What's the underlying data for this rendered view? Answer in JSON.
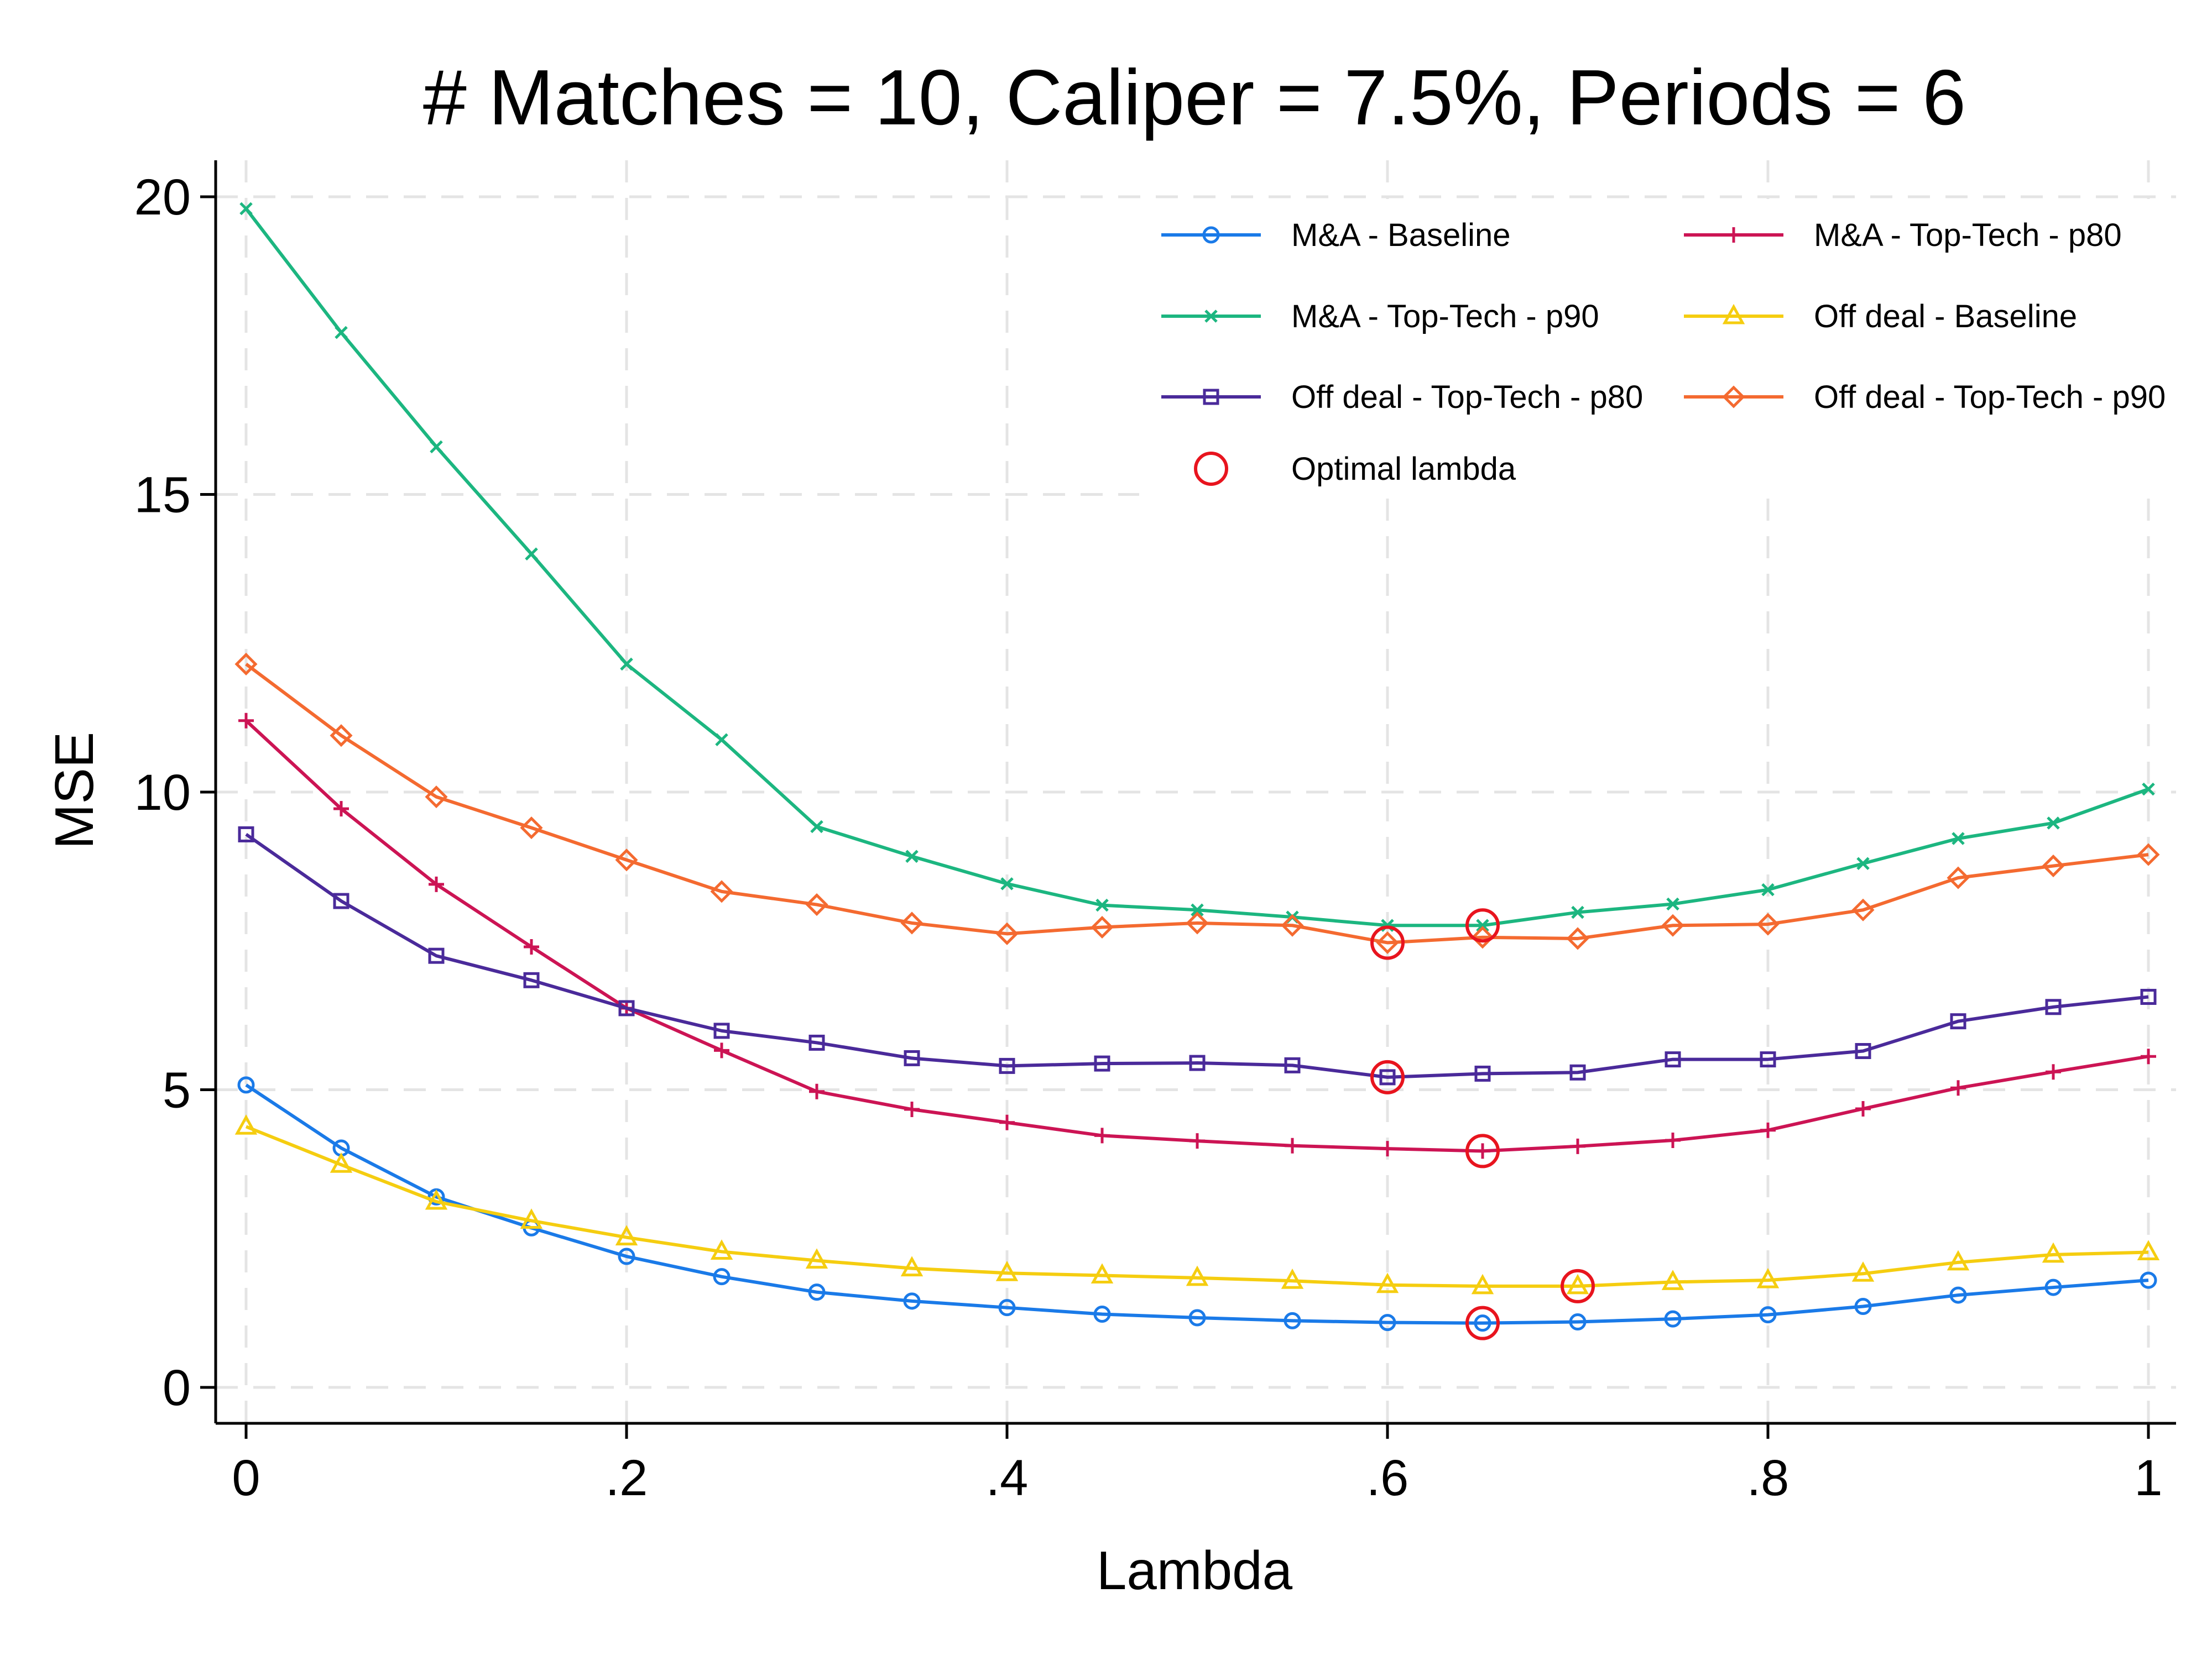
{
  "chart_data": {
    "type": "line",
    "title": "# Matches = 10, Caliper = 7.5%, Periods = 6",
    "xlabel": "Lambda",
    "ylabel": "MSE",
    "xlim": [
      0,
      1
    ],
    "ylim": [
      0,
      20
    ],
    "grid": true,
    "legend_position": "top-right",
    "x_ticks": [
      0,
      0.2,
      0.4,
      0.6,
      0.8,
      1
    ],
    "x_tick_labels": [
      "0",
      ".2",
      ".4",
      ".6",
      ".8",
      "1"
    ],
    "y_ticks": [
      0,
      5,
      10,
      15,
      20
    ],
    "y_tick_labels": [
      "0",
      "5",
      "10",
      "15",
      "20"
    ],
    "x": [
      0,
      0.05,
      0.1,
      0.15,
      0.2,
      0.25,
      0.3,
      0.35,
      0.4,
      0.45,
      0.5,
      0.55,
      0.6,
      0.65,
      0.7,
      0.75,
      0.8,
      0.85,
      0.9,
      0.95,
      1
    ],
    "series": [
      {
        "name": "M&A - Baseline",
        "color": "#1a7ae8",
        "marker": "circle",
        "values": [
          5.08,
          4.02,
          3.2,
          2.68,
          2.2,
          1.86,
          1.6,
          1.45,
          1.34,
          1.23,
          1.17,
          1.12,
          1.09,
          1.08,
          1.1,
          1.15,
          1.22,
          1.36,
          1.55,
          1.68,
          1.8
        ]
      },
      {
        "name": "M&A - Top-Tech - p80",
        "color": "#cc1454",
        "marker": "plus",
        "values": [
          11.2,
          9.72,
          8.45,
          7.4,
          6.37,
          5.66,
          4.97,
          4.67,
          4.45,
          4.23,
          4.14,
          4.06,
          4.01,
          3.97,
          4.05,
          4.15,
          4.32,
          4.68,
          5.03,
          5.3,
          5.56
        ]
      },
      {
        "name": "M&A - Top-Tech - p90",
        "color": "#1cb680",
        "marker": "x",
        "values": [
          19.8,
          17.72,
          15.8,
          14.0,
          12.15,
          10.88,
          9.42,
          8.92,
          8.46,
          8.1,
          8.02,
          7.9,
          7.76,
          7.76,
          7.98,
          8.12,
          8.36,
          8.8,
          9.22,
          9.48,
          10.05
        ]
      },
      {
        "name": "Off deal - Baseline",
        "color": "#f5cd10",
        "marker": "triangle",
        "values": [
          4.38,
          3.74,
          3.12,
          2.8,
          2.52,
          2.28,
          2.13,
          2.0,
          1.92,
          1.88,
          1.84,
          1.79,
          1.72,
          1.7,
          1.7,
          1.77,
          1.8,
          1.91,
          2.1,
          2.23,
          2.27
        ]
      },
      {
        "name": "Off deal - Top-Tech - p80",
        "color": "#4a2a9a",
        "marker": "square",
        "values": [
          9.29,
          8.17,
          7.25,
          6.84,
          6.37,
          5.99,
          5.79,
          5.53,
          5.4,
          5.44,
          5.45,
          5.41,
          5.21,
          5.27,
          5.29,
          5.51,
          5.51,
          5.65,
          6.15,
          6.39,
          6.56
        ]
      },
      {
        "name": "Off deal - Top-Tech - p90",
        "color": "#f46a30",
        "marker": "diamond",
        "values": [
          12.15,
          10.95,
          9.92,
          9.4,
          8.86,
          8.33,
          8.11,
          7.8,
          7.62,
          7.73,
          7.8,
          7.76,
          7.47,
          7.56,
          7.54,
          7.76,
          7.78,
          8.02,
          8.56,
          8.76,
          8.95
        ]
      }
    ],
    "optimal_lambda": {
      "label": "Optimal lambda",
      "color": "#e8141e",
      "points": [
        {
          "series": "M&A - Baseline",
          "x": 0.65,
          "y": 1.08
        },
        {
          "series": "M&A - Top-Tech - p80",
          "x": 0.65,
          "y": 3.97
        },
        {
          "series": "M&A - Top-Tech - p90",
          "x": 0.65,
          "y": 7.76
        },
        {
          "series": "Off deal - Baseline",
          "x": 0.7,
          "y": 1.7
        },
        {
          "series": "Off deal - Top-Tech - p80",
          "x": 0.6,
          "y": 5.21
        },
        {
          "series": "Off deal - Top-Tech - p90",
          "x": 0.6,
          "y": 7.47
        }
      ]
    },
    "legend_order": [
      "M&A - Baseline",
      "M&A - Top-Tech - p80",
      "M&A - Top-Tech - p90",
      "Off deal - Baseline",
      "Off deal - Top-Tech - p80",
      "Off deal - Top-Tech - p90"
    ]
  }
}
